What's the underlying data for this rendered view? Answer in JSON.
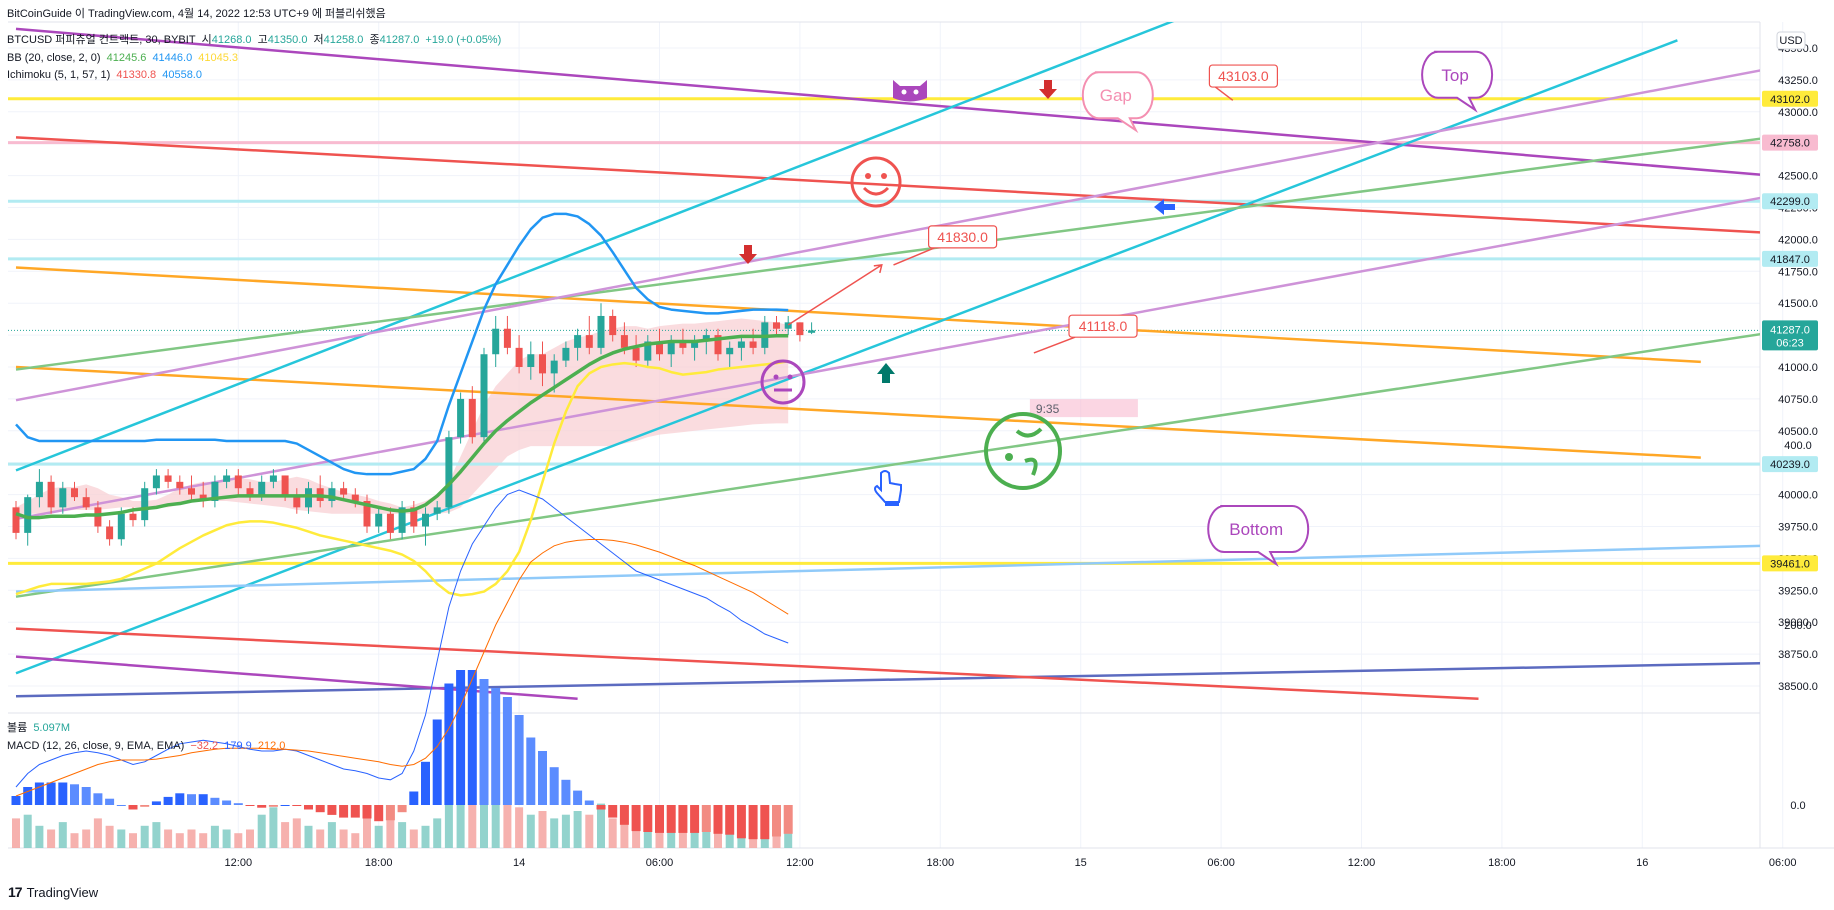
{
  "header": {
    "title": "BitCoinGuide 이 TradingView.com, 4월 14, 2022 12:53 UTC+9 에 퍼블리쉬했음",
    "symbol": "BTCUSD 퍼피츄얼 컨트랙트, 30, BYBIT",
    "ohlc": {
      "o_label": "시",
      "o": "41268.0",
      "h_label": "고",
      "h": "41350.0",
      "l_label": "저",
      "l": "41258.0",
      "c_label": "종",
      "c": "41287.0",
      "chg": "+19.0 (+0.05%)"
    },
    "bb": {
      "label": "BB (20, close, 2, 0)",
      "basis": "41245.6",
      "upper": "41446.0",
      "lower": "41045.3"
    },
    "ichimoku": {
      "label": "Ichimoku (5, 1, 57, 1)",
      "a": "41330.8",
      "b": "40558.0"
    },
    "volume": {
      "label": "볼륨",
      "value": "5.097M"
    },
    "macd": {
      "label": "MACD (12, 26, close, 9, EMA, EMA)",
      "hist": "−32.2",
      "macd": "179.9",
      "signal": "212.0"
    }
  },
  "currency": "USD",
  "footer": {
    "brand": "TradingView"
  },
  "colors": {
    "up": "#26a69a",
    "down": "#ef5350",
    "bb_basis": "#4caf50",
    "bb_upper": "#2196f3",
    "bb_lower": "#ffeb3b",
    "cloud": "#f8d0d4",
    "macd": "#2962ff",
    "signal": "#ff6d00"
  },
  "chart_data": {
    "type": "candlestick",
    "price_axis": {
      "ticks": [
        43500,
        43250,
        43000,
        42750,
        42500,
        42250,
        42000,
        41750,
        41500,
        41250,
        41000,
        40750,
        40500,
        40250,
        40000,
        39750,
        39500,
        39250,
        39000,
        38750,
        38500
      ]
    },
    "macd_axis": {
      "ticks": [
        {
          "v": 400,
          "l": "400.0"
        },
        {
          "v": 200,
          "l": "200.0"
        },
        {
          "v": 0,
          "l": "0.0"
        }
      ]
    },
    "time_axis": {
      "labels": [
        {
          "t": "12:00",
          "bar": 19
        },
        {
          "t": "18:00",
          "bar": 31
        },
        {
          "t": "14",
          "bar": 43
        },
        {
          "t": "06:00",
          "bar": 55
        },
        {
          "t": "12:00",
          "bar": 67
        },
        {
          "t": "18:00",
          "bar": 79
        },
        {
          "t": "15",
          "bar": 91
        },
        {
          "t": "06:00",
          "bar": 103
        },
        {
          "t": "12:00",
          "bar": 115
        },
        {
          "t": "18:00",
          "bar": 127
        },
        {
          "t": "16",
          "bar": 139
        },
        {
          "t": "06:00",
          "bar": 151
        }
      ]
    },
    "last_price": {
      "value": 41287.0,
      "label": "41287.0",
      "countdown": "06:23"
    },
    "price_tags": [
      {
        "label": "43102.0",
        "value": 43102,
        "bg": "#ffeb3b"
      },
      {
        "label": "42758.0",
        "value": 42758,
        "bg": "#f8bbd0"
      },
      {
        "label": "42299.0",
        "value": 42299,
        "bg": "#b2ebf2"
      },
      {
        "label": "41847.0",
        "value": 41847,
        "bg": "#b2ebf2"
      },
      {
        "label": "40239.0",
        "value": 40239,
        "bg": "#b2ebf2"
      },
      {
        "label": "39461.0",
        "value": 39461,
        "bg": "#ffeb3b"
      }
    ],
    "horizontal_lines": [
      {
        "value": 43102,
        "color": "#ffeb3b"
      },
      {
        "value": 42758,
        "color": "#f8bbd0"
      },
      {
        "value": 42299,
        "color": "#b2ebf2"
      },
      {
        "value": 41847,
        "color": "#b2ebf2"
      },
      {
        "value": 40239,
        "color": "#b2ebf2"
      },
      {
        "value": 39461,
        "color": "#ffeb3b"
      }
    ],
    "trend_lines": [
      {
        "color": "#ab47bc",
        "p1": [
          0,
          43650
        ],
        "p2": [
          150,
          42500
        ]
      },
      {
        "color": "#ef5350",
        "p1": [
          0,
          42800
        ],
        "p2": [
          150,
          42050
        ]
      },
      {
        "color": "#ffa726",
        "p1": [
          0,
          41780
        ],
        "p2": [
          144,
          41040
        ]
      },
      {
        "color": "#ffa726",
        "p1": [
          0,
          41000
        ],
        "p2": [
          144,
          40290
        ]
      },
      {
        "color": "#26c6da",
        "p1": [
          0,
          40190
        ],
        "p2": [
          100,
          43750
        ]
      },
      {
        "color": "#26c6da",
        "p1": [
          0,
          38600
        ],
        "p2": [
          142,
          43560
        ]
      },
      {
        "color": "#81c784",
        "p1": [
          0,
          40980
        ],
        "p2": [
          150,
          42800
        ]
      },
      {
        "color": "#81c784",
        "p1": [
          0,
          39200
        ],
        "p2": [
          150,
          41270
        ]
      },
      {
        "color": "#ce93d8",
        "p1": [
          0,
          40740
        ],
        "p2": [
          150,
          43340
        ]
      },
      {
        "color": "#ce93d8",
        "p1": [
          0,
          39810
        ],
        "p2": [
          150,
          42340
        ]
      },
      {
        "color": "#90caf9",
        "p1": [
          0,
          39240
        ],
        "p2": [
          150,
          39600
        ]
      },
      {
        "color": "#5c6bc0",
        "p1": [
          0,
          38420
        ],
        "p2": [
          150,
          38680
        ]
      },
      {
        "color": "#ef5350",
        "p1": [
          0,
          38950
        ],
        "p2": [
          125,
          38400
        ]
      },
      {
        "color": "#ab47bc",
        "p1": [
          0,
          38730
        ],
        "p2": [
          48,
          38400
        ]
      }
    ],
    "candles": [
      [
        39900,
        39950,
        39650,
        39700
      ],
      [
        39700,
        40000,
        39600,
        39980
      ],
      [
        39980,
        40200,
        39900,
        40100
      ],
      [
        40100,
        40150,
        39850,
        39900
      ],
      [
        39900,
        40100,
        39850,
        40050
      ],
      [
        40050,
        40100,
        39950,
        39980
      ],
      [
        39980,
        40050,
        39880,
        39900
      ],
      [
        39900,
        39950,
        39700,
        39750
      ],
      [
        39750,
        39800,
        39600,
        39650
      ],
      [
        39650,
        39900,
        39600,
        39850
      ],
      [
        39850,
        39900,
        39750,
        39800
      ],
      [
        39800,
        40100,
        39750,
        40050
      ],
      [
        40050,
        40200,
        40000,
        40150
      ],
      [
        40150,
        40200,
        40050,
        40100
      ],
      [
        40100,
        40150,
        40000,
        40050
      ],
      [
        40050,
        40150,
        39950,
        40000
      ],
      [
        40000,
        40100,
        39900,
        39950
      ],
      [
        39950,
        40150,
        39900,
        40100
      ],
      [
        40100,
        40200,
        40050,
        40150
      ],
      [
        40150,
        40200,
        40000,
        40050
      ],
      [
        40050,
        40100,
        39950,
        40000
      ],
      [
        40000,
        40150,
        39950,
        40100
      ],
      [
        40100,
        40200,
        40050,
        40150
      ],
      [
        40150,
        40150,
        39950,
        40000
      ],
      [
        40000,
        40050,
        39850,
        39900
      ],
      [
        39900,
        40100,
        39850,
        40050
      ],
      [
        40050,
        40150,
        39900,
        39950
      ],
      [
        39950,
        40100,
        39900,
        40050
      ],
      [
        40050,
        40100,
        39950,
        40000
      ],
      [
        40000,
        40050,
        39900,
        39950
      ],
      [
        39950,
        40000,
        39700,
        39750
      ],
      [
        39750,
        39900,
        39700,
        39850
      ],
      [
        39850,
        39900,
        39650,
        39700
      ],
      [
        39700,
        39950,
        39650,
        39900
      ],
      [
        39900,
        39950,
        39700,
        39750
      ],
      [
        39750,
        39900,
        39600,
        39850
      ],
      [
        39850,
        39950,
        39800,
        39900
      ],
      [
        39900,
        40500,
        39850,
        40450
      ],
      [
        40450,
        40800,
        40400,
        40750
      ],
      [
        40750,
        40850,
        40400,
        40450
      ],
      [
        40450,
        41150,
        40400,
        41100
      ],
      [
        41100,
        41400,
        41000,
        41300
      ],
      [
        41300,
        41400,
        41100,
        41150
      ],
      [
        41150,
        41250,
        40950,
        41000
      ],
      [
        41000,
        41200,
        40900,
        41100
      ],
      [
        41100,
        41200,
        40850,
        40950
      ],
      [
        40950,
        41100,
        40800,
        41050
      ],
      [
        41050,
        41200,
        41000,
        41150
      ],
      [
        41150,
        41300,
        41050,
        41250
      ],
      [
        41250,
        41400,
        41100,
        41150
      ],
      [
        41150,
        41500,
        41100,
        41400
      ],
      [
        41400,
        41450,
        41200,
        41250
      ],
      [
        41250,
        41350,
        41100,
        41150
      ],
      [
        41150,
        41250,
        41000,
        41050
      ],
      [
        41050,
        41250,
        41000,
        41200
      ],
      [
        41200,
        41300,
        41050,
        41100
      ],
      [
        41100,
        41250,
        41000,
        41200
      ],
      [
        41200,
        41300,
        41100,
        41150
      ],
      [
        41150,
        41250,
        41050,
        41200
      ],
      [
        41200,
        41300,
        41100,
        41250
      ],
      [
        41250,
        41300,
        41050,
        41100
      ],
      [
        41100,
        41200,
        41000,
        41150
      ],
      [
        41150,
        41250,
        41050,
        41200
      ],
      [
        41200,
        41300,
        41100,
        41150
      ],
      [
        41150,
        41400,
        41100,
        41350
      ],
      [
        41350,
        41400,
        41250,
        41300
      ],
      [
        41300,
        41400,
        41250,
        41350
      ],
      [
        41350,
        41350,
        41200,
        41250
      ],
      [
        41268,
        41350,
        41258,
        41287
      ]
    ],
    "bb_upper": [
      40550,
      40450,
      40420,
      40420,
      40420,
      40420,
      40420,
      40420,
      40420,
      40420,
      40420,
      40420,
      40430,
      40430,
      40430,
      40430,
      40430,
      40430,
      40420,
      40420,
      40420,
      40420,
      40420,
      40420,
      40400,
      40350,
      40300,
      40250,
      40200,
      40170,
      40160,
      40160,
      40160,
      40180,
      40200,
      40280,
      40420,
      40700,
      40950,
      41200,
      41450,
      41650,
      41800,
      41950,
      42080,
      42170,
      42200,
      42200,
      42180,
      42120,
      42030,
      41900,
      41760,
      41620,
      41530,
      41470,
      41450,
      41440,
      41430,
      41420,
      41420,
      41430,
      41440,
      41450,
      41450,
      41450,
      41446
    ],
    "bb_basis": [
      39850,
      39820,
      39820,
      39830,
      39830,
      39830,
      39840,
      39840,
      39850,
      39860,
      39880,
      39890,
      39900,
      39920,
      39930,
      39950,
      39960,
      39970,
      39980,
      39990,
      39990,
      39990,
      39990,
      39990,
      39990,
      39990,
      39990,
      39980,
      39960,
      39940,
      39920,
      39900,
      39880,
      39870,
      39880,
      39920,
      39990,
      40080,
      40180,
      40290,
      40400,
      40500,
      40580,
      40650,
      40720,
      40780,
      40840,
      40900,
      40960,
      41020,
      41070,
      41110,
      41140,
      41160,
      41180,
      41190,
      41200,
      41200,
      41200,
      41210,
      41220,
      41230,
      41240,
      41240,
      41240,
      41245,
      41245
    ],
    "bb_lower": [
      39220,
      39250,
      39280,
      39300,
      39300,
      39300,
      39300,
      39310,
      39320,
      39340,
      39380,
      39420,
      39460,
      39520,
      39580,
      39630,
      39680,
      39720,
      39760,
      39780,
      39790,
      39790,
      39780,
      39760,
      39740,
      39710,
      39680,
      39660,
      39640,
      39620,
      39600,
      39580,
      39560,
      39530,
      39480,
      39400,
      39300,
      39230,
      39210,
      39220,
      39240,
      39300,
      39400,
      39550,
      39800,
      40100,
      40400,
      40650,
      40850,
      40950,
      41000,
      41020,
      41030,
      41020,
      41000,
      40990,
      40960,
      40940,
      40950,
      40960,
      40980,
      40990,
      41000,
      41010,
      41020,
      41030,
      41045
    ],
    "cloud_a": [
      39900,
      39950,
      40000,
      40050,
      40060,
      40060,
      40080,
      40050,
      40000,
      39980,
      39950,
      39950,
      39960,
      40000,
      40050,
      40080,
      40100,
      40100,
      40120,
      40130,
      40120,
      40100,
      40100,
      40120,
      40140,
      40120,
      40080,
      40050,
      40020,
      40000,
      39980,
      39950,
      39930,
      39900,
      39920,
      39950,
      40000,
      40100,
      40300,
      40500,
      40700,
      40850,
      40950,
      41050,
      41100,
      41100,
      41150,
      41200,
      41230,
      41250,
      41280,
      41300,
      41320,
      41320,
      41300,
      41320,
      41330,
      41340,
      41340,
      41350,
      41360,
      41370,
      41380,
      41370,
      41360,
      41350,
      41330
    ],
    "cloud_b": [
      39850,
      39850,
      39850,
      39860,
      39870,
      39880,
      39880,
      39880,
      39890,
      39900,
      39900,
      39900,
      39900,
      39900,
      39920,
      39940,
      39950,
      39950,
      39950,
      39940,
      39930,
      39920,
      39910,
      39900,
      39880,
      39870,
      39860,
      39850,
      39850,
      39850,
      39850,
      39850,
      39850,
      39850,
      39850,
      39850,
      39850,
      39860,
      39900,
      40000,
      40100,
      40200,
      40300,
      40350,
      40380,
      40380,
      40380,
      40380,
      40380,
      40380,
      40380,
      40380,
      40400,
      40420,
      40450,
      40470,
      40480,
      40490,
      40500,
      40510,
      40520,
      40530,
      40540,
      40550,
      40555,
      40558,
      40558
    ],
    "volume": [
      0.8,
      0.9,
      0.6,
      0.5,
      0.7,
      0.4,
      0.5,
      0.8,
      0.6,
      0.5,
      0.4,
      0.6,
      0.7,
      0.5,
      0.4,
      0.5,
      0.4,
      0.6,
      0.5,
      0.4,
      0.5,
      0.9,
      1.1,
      0.7,
      0.8,
      0.6,
      0.5,
      0.7,
      0.5,
      0.4,
      0.8,
      0.6,
      0.9,
      0.7,
      0.5,
      0.6,
      0.8,
      2.2,
      3.0,
      2.7,
      1.9,
      1.5,
      1.3,
      1.1,
      0.9,
      1.0,
      0.8,
      0.9,
      1.0,
      0.9,
      1.2,
      0.8,
      1.0,
      0.7,
      0.9,
      0.6,
      0.8,
      0.7,
      0.6,
      0.8,
      0.7,
      0.9,
      0.6,
      0.5,
      0.8,
      0.6,
      0.5
    ],
    "macd_line": [
      20,
      35,
      45,
      50,
      55,
      58,
      60,
      58,
      55,
      50,
      45,
      48,
      55,
      62,
      68,
      70,
      72,
      70,
      68,
      65,
      62,
      60,
      60,
      62,
      60,
      55,
      50,
      45,
      40,
      38,
      35,
      30,
      28,
      35,
      60,
      100,
      160,
      220,
      260,
      290,
      310,
      330,
      345,
      350,
      345,
      340,
      330,
      320,
      310,
      300,
      290,
      280,
      270,
      260,
      255,
      250,
      245,
      240,
      235,
      230,
      222,
      215,
      205,
      198,
      190,
      185,
      180
    ],
    "signal_line": [
      10,
      15,
      20,
      25,
      30,
      35,
      40,
      45,
      48,
      50,
      50,
      50,
      51,
      53,
      55,
      58,
      60,
      62,
      63,
      63,
      63,
      63,
      62,
      62,
      61,
      60,
      58,
      56,
      54,
      52,
      50,
      48,
      45,
      43,
      45,
      52,
      65,
      85,
      110,
      140,
      170,
      200,
      225,
      250,
      270,
      280,
      288,
      292,
      294,
      295,
      295,
      294,
      292,
      289,
      285,
      281,
      276,
      271,
      266,
      260,
      254,
      248,
      242,
      236,
      228,
      220,
      212
    ],
    "macd_hist": [
      10,
      20,
      25,
      25,
      25,
      23,
      20,
      13,
      7,
      0,
      -5,
      -2,
      4,
      9,
      13,
      12,
      12,
      8,
      5,
      2,
      -1,
      -3,
      -2,
      0,
      -1,
      -5,
      -8,
      -11,
      -14,
      -14,
      -15,
      -18,
      -17,
      -8,
      15,
      48,
      95,
      135,
      150,
      150,
      140,
      130,
      120,
      100,
      75,
      60,
      42,
      28,
      16,
      5,
      -5,
      -14,
      -22,
      -29,
      -30,
      -31,
      -31,
      -31,
      -31,
      -30,
      -32,
      -33,
      -37,
      -38,
      -38,
      -35,
      -32
    ],
    "annotations": [
      {
        "type": "callout",
        "text": "43103.0",
        "x": 102,
        "y": 43280,
        "tx": 104,
        "ty": 43090
      },
      {
        "type": "callout",
        "text": "41830.0",
        "x": 78,
        "y": 42020,
        "tx": 75,
        "ty": 41800
      },
      {
        "type": "callout",
        "text": "41118.0",
        "x": 90,
        "y": 41320,
        "tx": 87,
        "ty": 41110
      },
      {
        "type": "bubble",
        "text": "Top",
        "x": 123,
        "y": 43290,
        "color": "#ab47bc"
      },
      {
        "type": "bubble",
        "text": "Gap",
        "x": 94,
        "y": 43130,
        "color": "#f48fb1"
      },
      {
        "type": "bubble",
        "text": "Bottom",
        "x": 106,
        "y": 39730,
        "color": "#ab47bc"
      },
      {
        "type": "label",
        "text": "9:35",
        "x": 87,
        "y": 40670
      }
    ]
  }
}
